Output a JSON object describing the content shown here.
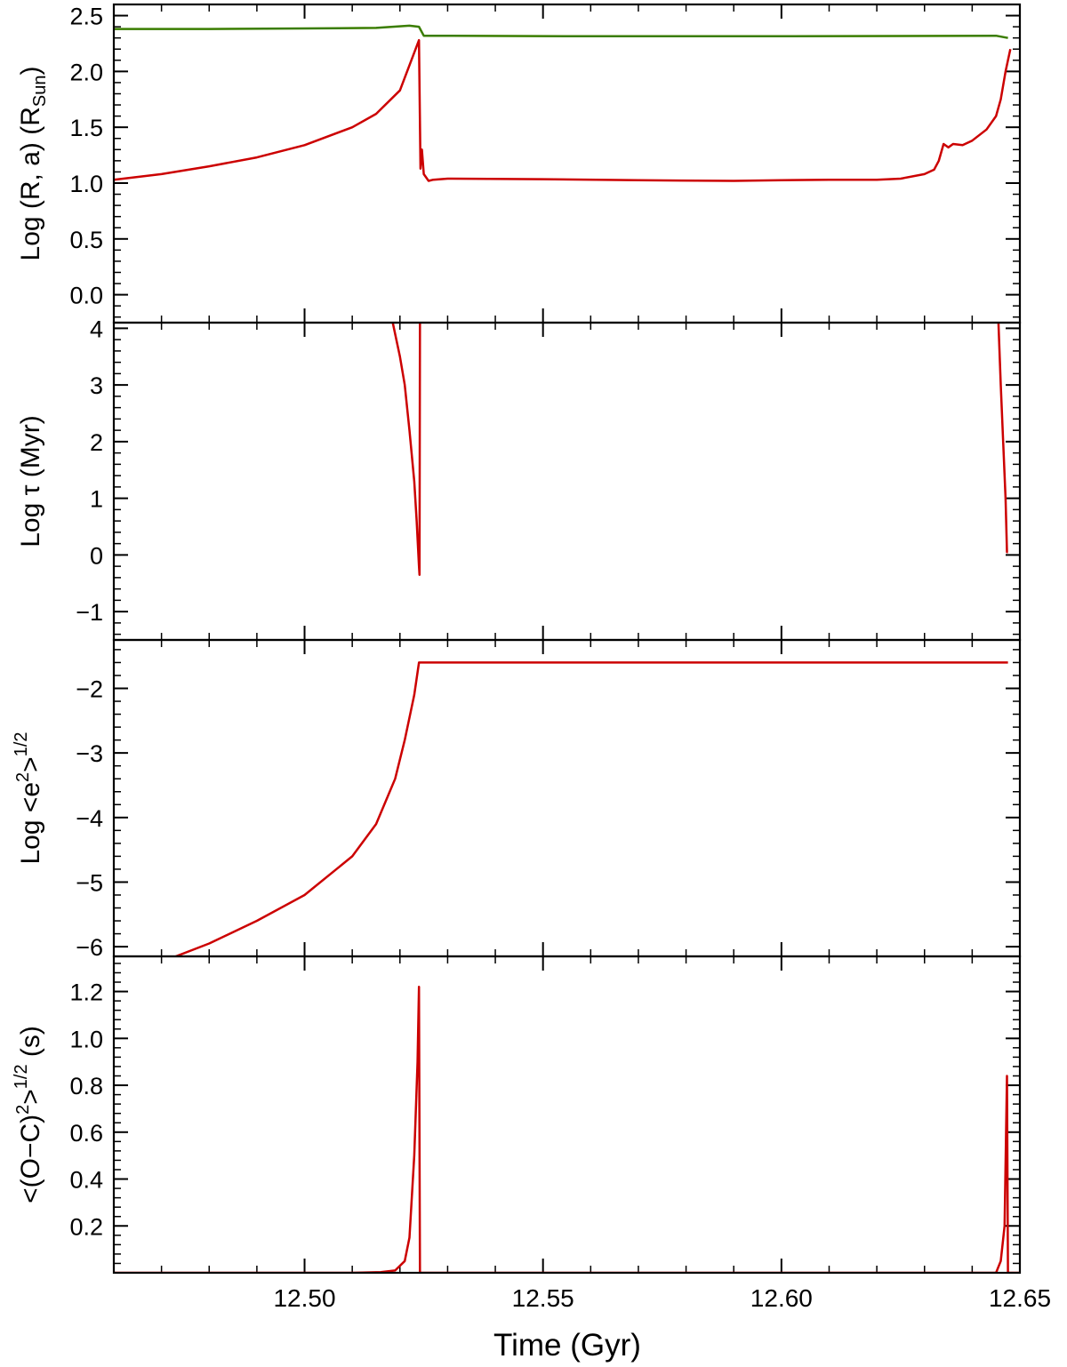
{
  "figure": {
    "xlabel": "Time (Gyr)",
    "x_ticks": [
      12.5,
      12.55,
      12.6,
      12.65
    ],
    "x_tick_labels": [
      "12.50",
      "12.55",
      "12.60",
      "12.65"
    ],
    "xlim": [
      12.46,
      12.65
    ]
  },
  "colors": {
    "red": "#cc0000",
    "green": "#3a7d00",
    "axes": "#000000"
  },
  "chart_data": [
    {
      "type": "line",
      "panel": "top",
      "ylabel": "Log (R, a) (RSun)",
      "ylabel_main": "Log (R, a) (R",
      "ylabel_sub": "Sun",
      "ylabel_end": ")",
      "ylim": [
        -0.25,
        2.6
      ],
      "y_ticks": [
        0.0,
        0.5,
        1.0,
        1.5,
        2.0,
        2.5
      ],
      "y_tick_labels": [
        "0.0",
        "0.5",
        "1.0",
        "1.5",
        "2.0",
        "2.5"
      ],
      "series": [
        {
          "color": "green",
          "points": [
            [
              12.46,
              2.38
            ],
            [
              12.48,
              2.38
            ],
            [
              12.5,
              2.385
            ],
            [
              12.515,
              2.39
            ],
            [
              12.522,
              2.41
            ],
            [
              12.524,
              2.4
            ],
            [
              12.525,
              2.32
            ],
            [
              12.56,
              2.315
            ],
            [
              12.6,
              2.315
            ],
            [
              12.645,
              2.32
            ],
            [
              12.6475,
              2.3
            ]
          ]
        },
        {
          "color": "red",
          "points": [
            [
              12.46,
              1.03
            ],
            [
              12.47,
              1.08
            ],
            [
              12.48,
              1.15
            ],
            [
              12.49,
              1.23
            ],
            [
              12.5,
              1.34
            ],
            [
              12.51,
              1.5
            ],
            [
              12.515,
              1.62
            ],
            [
              12.52,
              1.83
            ],
            [
              12.524,
              2.28
            ],
            [
              12.5243,
              1.13
            ],
            [
              12.5246,
              1.3
            ],
            [
              12.525,
              1.08
            ],
            [
              12.526,
              1.02
            ],
            [
              12.527,
              1.03
            ],
            [
              12.53,
              1.04
            ],
            [
              12.55,
              1.035
            ],
            [
              12.57,
              1.025
            ],
            [
              12.59,
              1.02
            ],
            [
              12.6,
              1.025
            ],
            [
              12.61,
              1.03
            ],
            [
              12.62,
              1.03
            ],
            [
              12.625,
              1.04
            ],
            [
              12.63,
              1.08
            ],
            [
              12.632,
              1.12
            ],
            [
              12.633,
              1.2
            ],
            [
              12.634,
              1.35
            ],
            [
              12.635,
              1.32
            ],
            [
              12.636,
              1.35
            ],
            [
              12.638,
              1.34
            ],
            [
              12.64,
              1.38
            ],
            [
              12.643,
              1.48
            ],
            [
              12.645,
              1.6
            ],
            [
              12.646,
              1.75
            ],
            [
              12.647,
              2.0
            ],
            [
              12.648,
              2.2
            ]
          ]
        }
      ]
    },
    {
      "type": "line",
      "panel": "tau",
      "ylabel": "Log τ (Myr)",
      "ylim": [
        -1.5,
        4.1
      ],
      "y_ticks": [
        -1,
        0,
        1,
        2,
        3,
        4
      ],
      "y_tick_labels": [
        "−1",
        "0",
        "1",
        "2",
        "3",
        "4"
      ],
      "series": [
        {
          "color": "red",
          "points": [
            [
              12.5185,
              4.1
            ],
            [
              12.52,
              3.5
            ],
            [
              12.521,
              3.0
            ],
            [
              12.522,
              2.2
            ],
            [
              12.523,
              1.3
            ],
            [
              12.5235,
              0.6
            ],
            [
              12.524,
              -0.2
            ],
            [
              12.5241,
              -0.35
            ],
            [
              12.5242,
              4.1
            ]
          ]
        },
        {
          "color": "red",
          "points": [
            [
              12.6455,
              4.1
            ],
            [
              12.646,
              3.0
            ],
            [
              12.6465,
              2.0
            ],
            [
              12.647,
              1.0
            ],
            [
              12.6473,
              0.05
            ],
            [
              12.6475,
              0.05
            ]
          ]
        }
      ]
    },
    {
      "type": "line",
      "panel": "ecc",
      "ylabel": "Log <e²>^1/2",
      "ylabel_main": "Log <e",
      "ylabel_sup1": "2",
      "ylabel_mid": ">",
      "ylabel_sup2": "1/2",
      "ylim": [
        -6.15,
        -1.25
      ],
      "y_ticks": [
        -6,
        -5,
        -4,
        -3,
        -2
      ],
      "y_tick_labels": [
        "−6",
        "−5",
        "−4",
        "−3",
        "−2"
      ],
      "series": [
        {
          "color": "red",
          "points": [
            [
              12.473,
              -6.15
            ],
            [
              12.48,
              -5.95
            ],
            [
              12.49,
              -5.6
            ],
            [
              12.5,
              -5.2
            ],
            [
              12.51,
              -4.6
            ],
            [
              12.515,
              -4.1
            ],
            [
              12.519,
              -3.4
            ],
            [
              12.521,
              -2.8
            ],
            [
              12.523,
              -2.1
            ],
            [
              12.524,
              -1.6
            ],
            [
              12.53,
              -1.6
            ],
            [
              12.6,
              -1.6
            ],
            [
              12.6475,
              -1.6
            ]
          ]
        }
      ]
    },
    {
      "type": "line",
      "panel": "oc",
      "ylabel": "<(O−C)²>^1/2 (s)",
      "ylabel_main": "<(O−C)",
      "ylabel_sup1": "2",
      "ylabel_mid": ">",
      "ylabel_sup2": "1/2",
      "ylabel_end": " (s)",
      "ylim": [
        0.0,
        1.35
      ],
      "y_ticks": [
        0.2,
        0.4,
        0.6,
        0.8,
        1.0,
        1.2
      ],
      "y_tick_labels": [
        "0.2",
        "0.4",
        "0.6",
        "0.8",
        "1.0",
        "1.2"
      ],
      "series": [
        {
          "color": "red",
          "points": [
            [
              12.46,
              0.0
            ],
            [
              12.51,
              0.0
            ],
            [
              12.516,
              0.003
            ],
            [
              12.519,
              0.01
            ],
            [
              12.521,
              0.05
            ],
            [
              12.522,
              0.15
            ],
            [
              12.523,
              0.5
            ],
            [
              12.5237,
              0.9
            ],
            [
              12.524,
              1.22
            ],
            [
              12.5242,
              0.0
            ],
            [
              12.6,
              0.0
            ],
            [
              12.645,
              0.0
            ],
            [
              12.646,
              0.05
            ],
            [
              12.6468,
              0.2
            ],
            [
              12.6473,
              0.84
            ],
            [
              12.6475,
              0.0
            ],
            [
              12.65,
              0.0
            ]
          ]
        }
      ]
    }
  ]
}
